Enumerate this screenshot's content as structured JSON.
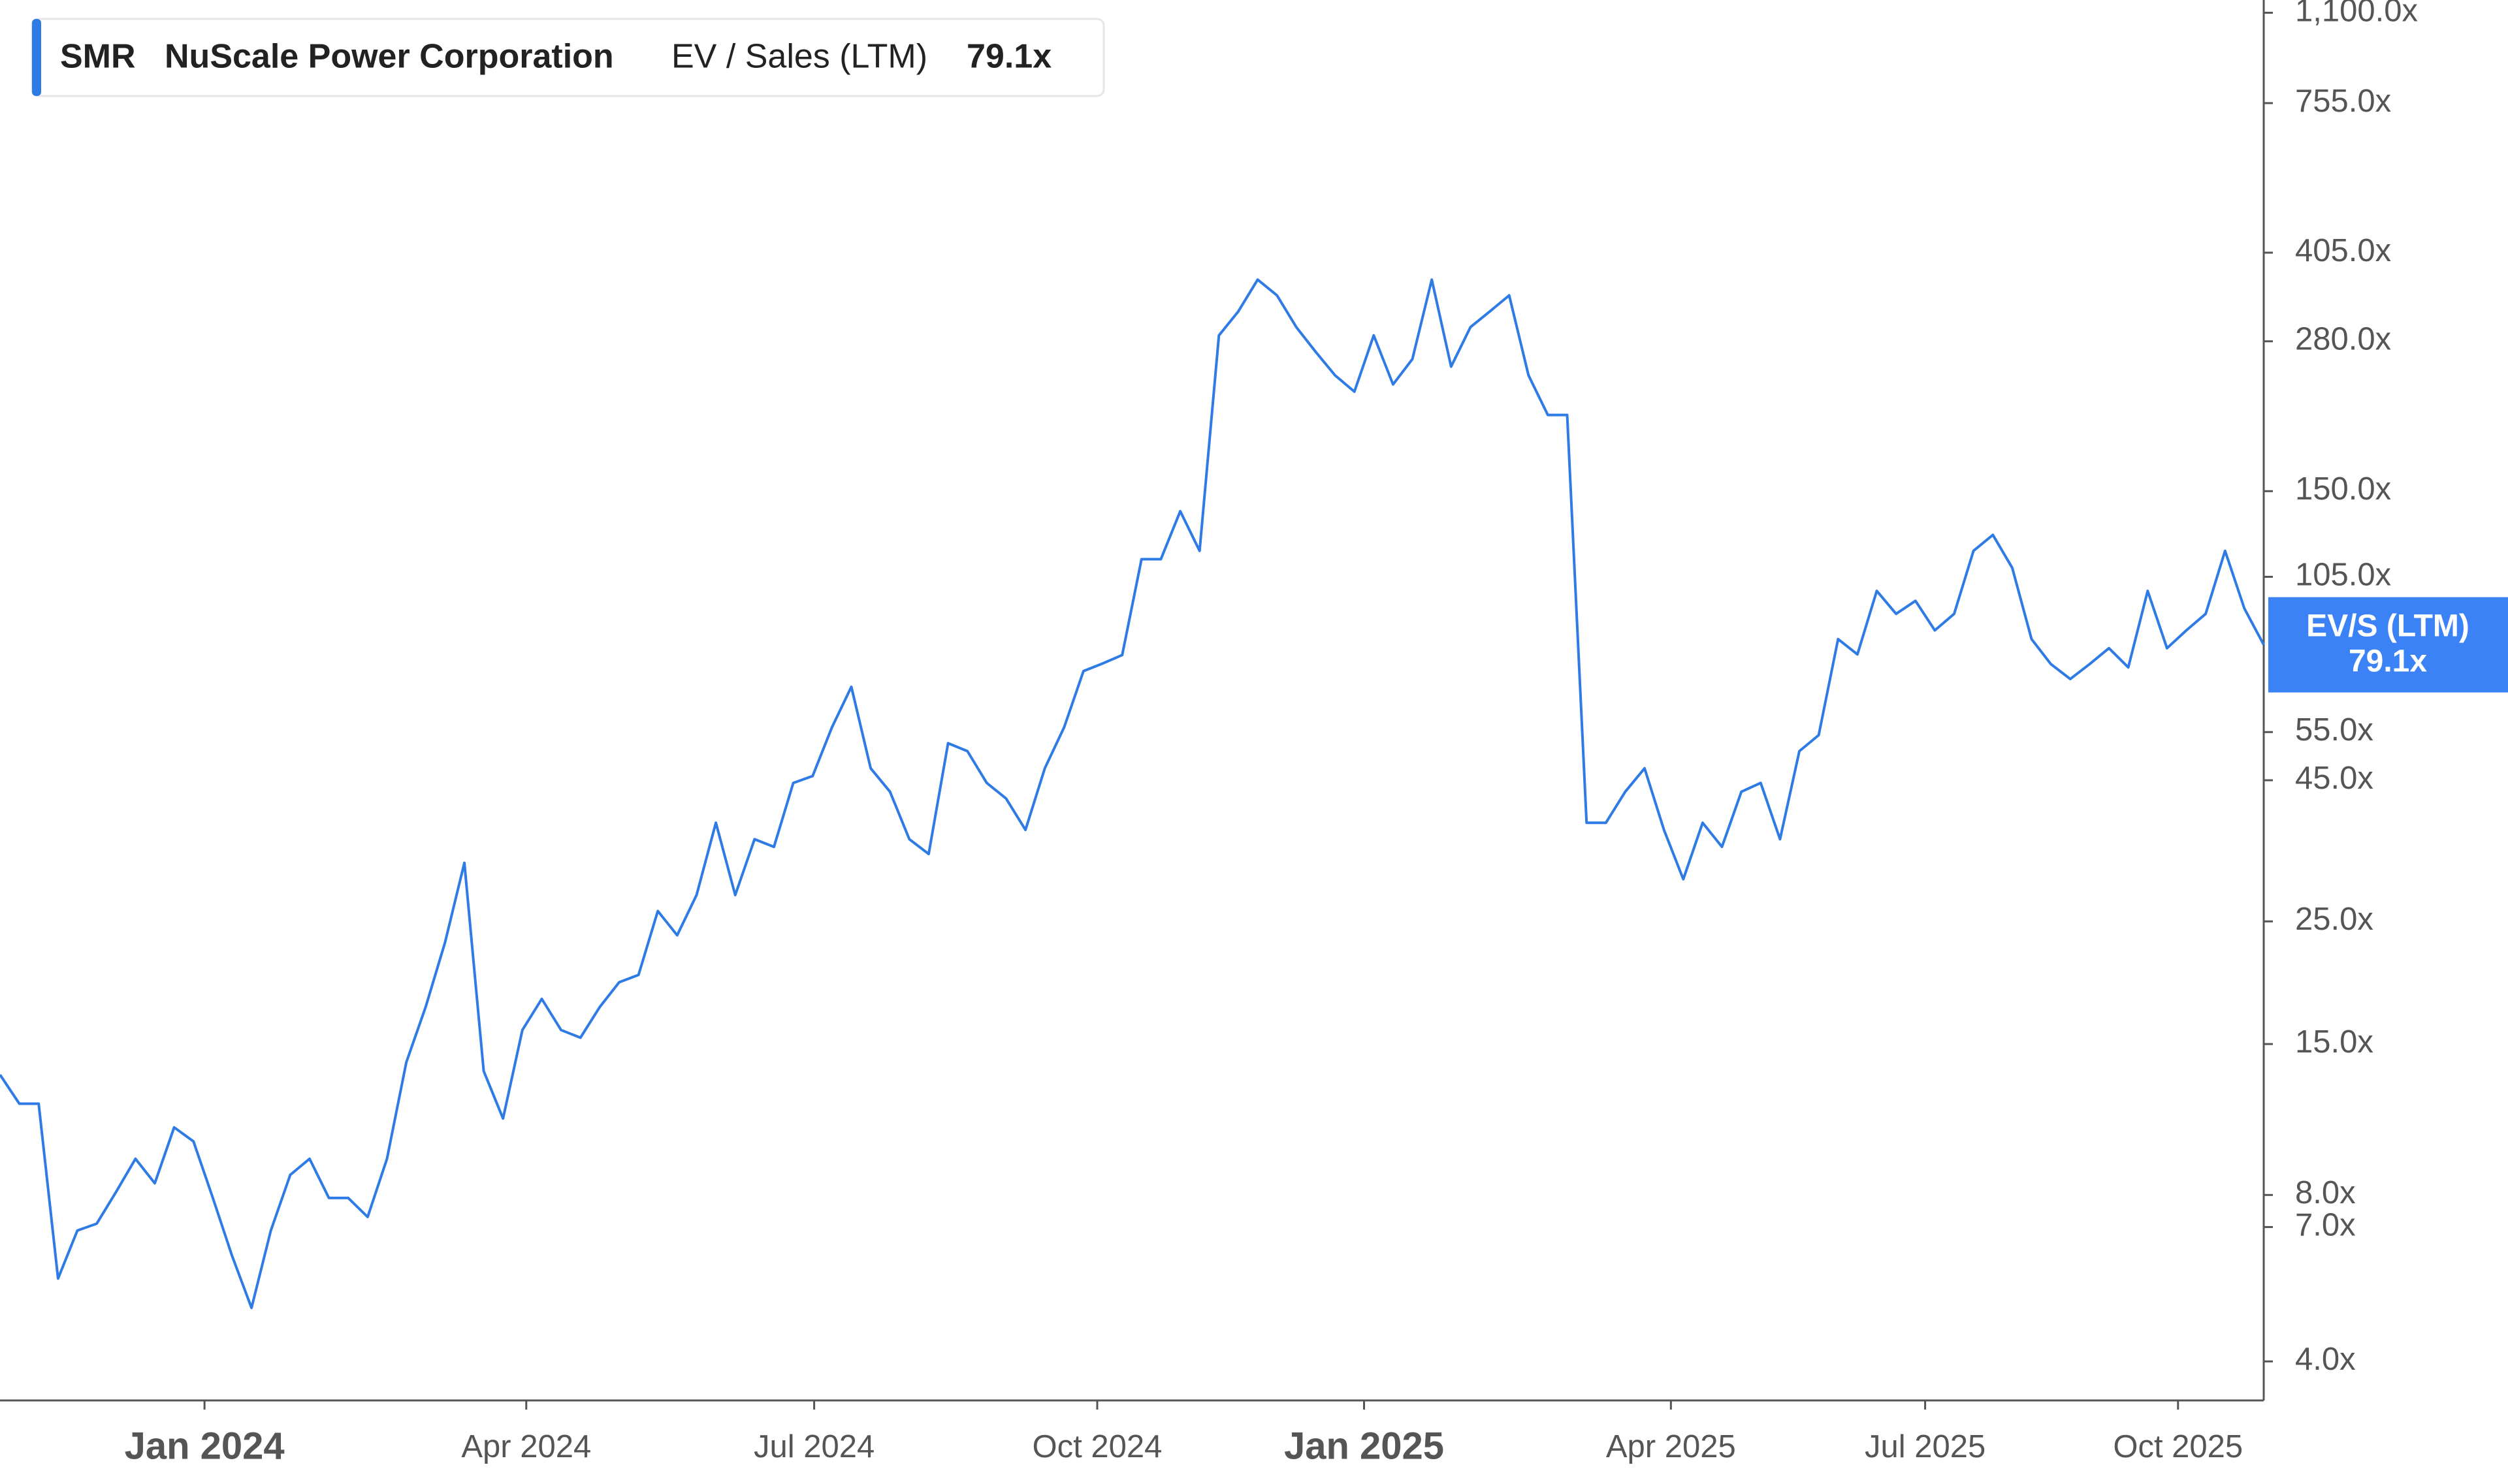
{
  "chart_data": {
    "type": "line",
    "log_scale": true,
    "color": "#2f7be5",
    "header": {
      "ticker": "SMR",
      "name": "NuScale Power Corporation",
      "metric": "EV / Sales (LTM)",
      "value": "79.1x"
    },
    "badge": {
      "label": "EV/S (LTM)",
      "value": "79.1x"
    },
    "values": [
      13.2,
      11.7,
      11.7,
      5.65,
      6.9,
      7.1,
      8.1,
      9.3,
      8.4,
      10.6,
      10.0,
      7.9,
      6.2,
      5.0,
      6.9,
      8.7,
      9.3,
      7.9,
      7.9,
      7.3,
      9.3,
      13.9,
      17.5,
      22.9,
      31.9,
      13.4,
      11.0,
      15.9,
      18.1,
      15.9,
      15.4,
      17.5,
      19.4,
      20.0,
      26.1,
      23.6,
      27.9,
      37.7,
      27.9,
      35.2,
      34.1,
      44.5,
      45.8,
      56.1,
      66.4,
      47.3,
      42.9,
      35.2,
      33.1,
      52.5,
      50.8,
      44.5,
      41.7,
      36.6,
      47.3,
      56.1,
      70.9,
      73.2,
      75.8,
      113,
      113,
      138,
      117,
      287,
      317,
      362,
      339,
      297,
      268,
      243,
      227,
      287,
      234,
      260,
      362,
      252,
      297,
      317,
      339,
      243,
      206,
      206,
      37.7,
      37.7,
      42.9,
      47.3,
      36.6,
      29.8,
      37.7,
      34.1,
      42.9,
      44.5,
      35.2,
      50.8,
      54.3,
      81,
      76,
      99,
      90,
      95,
      84,
      90,
      117,
      125,
      109,
      81,
      73,
      68.6,
      73,
      78,
      72,
      99,
      78,
      84,
      90,
      117,
      92,
      79.1
    ],
    "xlim": [
      0,
      117
    ],
    "xticks": [
      {
        "value": 10.57,
        "label": "Jan 2024",
        "major": true
      },
      {
        "value": 27.2,
        "label": "Apr 2024"
      },
      {
        "value": 42.08,
        "label": "Jul 2024"
      },
      {
        "value": 56.71,
        "label": "Oct 2024"
      },
      {
        "value": 70.5,
        "label": "Jan 2025",
        "major": true
      },
      {
        "value": 86.36,
        "label": "Apr 2025"
      },
      {
        "value": 99.5,
        "label": "Jul 2025"
      },
      {
        "value": 112.57,
        "label": "Oct 2025"
      }
    ],
    "ylim": [
      3.4,
      1160
    ],
    "yticks": [
      {
        "value": 4,
        "label": "4.0x"
      },
      {
        "value": 7,
        "label": "7.0x"
      },
      {
        "value": 8,
        "label": "8.0x"
      },
      {
        "value": 15,
        "label": "15.0x"
      },
      {
        "value": 25,
        "label": "25.0x"
      },
      {
        "value": 45,
        "label": "45.0x"
      },
      {
        "value": 55,
        "label": "55.0x"
      },
      {
        "value": 105,
        "label": "105.0x"
      },
      {
        "value": 150,
        "label": "150.0x"
      },
      {
        "value": 280,
        "label": "280.0x"
      },
      {
        "value": 405,
        "label": "405.0x"
      },
      {
        "value": 755,
        "label": "755.0x"
      },
      {
        "value": 1100,
        "label": "1,100.0x"
      }
    ]
  }
}
